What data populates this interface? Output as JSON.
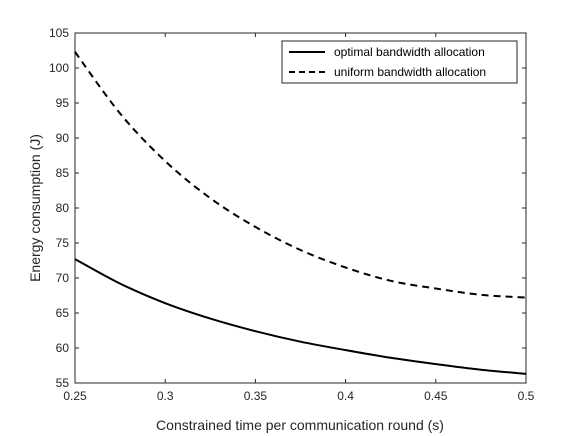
{
  "chart_data": {
    "type": "line",
    "xlabel": "Constrained time per communication round (s)",
    "ylabel": "Energy consumption (J)",
    "xlim": [
      0.25,
      0.5
    ],
    "ylim": [
      55,
      105
    ],
    "x_ticks": [
      "0.25",
      "0.3",
      "0.35",
      "0.4",
      "0.45",
      "0.5"
    ],
    "y_ticks": [
      "55",
      "60",
      "65",
      "70",
      "75",
      "80",
      "85",
      "90",
      "95",
      "100",
      "105"
    ],
    "grid": false,
    "legend_position": "top-right",
    "x": [
      0.25,
      0.275,
      0.3,
      0.325,
      0.35,
      0.375,
      0.4,
      0.425,
      0.45,
      0.475,
      0.5
    ],
    "series": [
      {
        "name": "optimal bandwidth allocation",
        "style": "solid",
        "color": "#000000",
        "values": [
          72.7,
          69.2,
          66.4,
          64.2,
          62.4,
          60.9,
          59.7,
          58.6,
          57.7,
          56.9,
          56.3
        ]
      },
      {
        "name": "uniform bandwidth allocation",
        "style": "dashed",
        "color": "#000000",
        "values": [
          102.3,
          93.5,
          86.7,
          81.4,
          77.3,
          74.0,
          71.5,
          69.6,
          68.5,
          67.6,
          67.2
        ]
      }
    ]
  }
}
